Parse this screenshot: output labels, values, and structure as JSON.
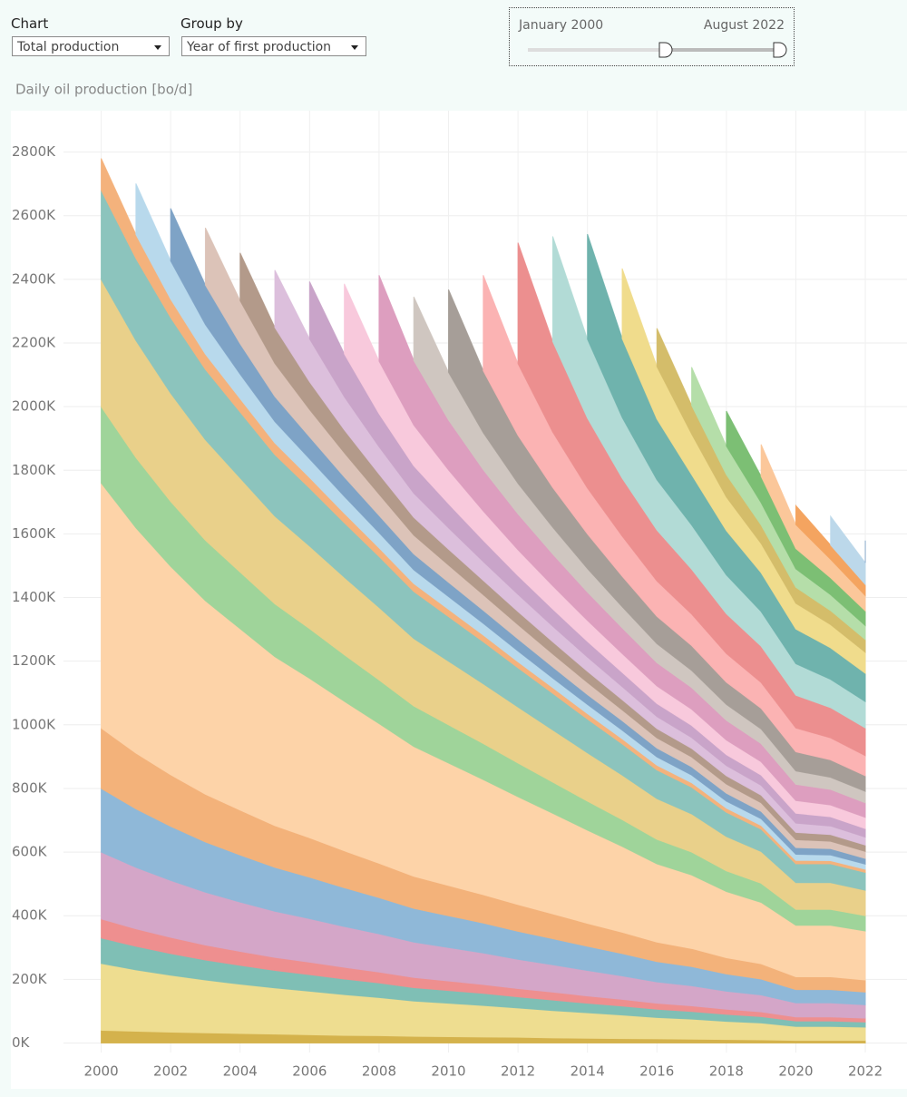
{
  "controls": {
    "chart": {
      "label": "Chart",
      "value": "Total production"
    },
    "group_by": {
      "label": "Group by",
      "value": "Year of first production"
    },
    "slider": {
      "start": "January 2000",
      "end": "August 2022"
    }
  },
  "chart_data": {
    "type": "stacked_area",
    "y_label": "Daily oil production [bo/d]",
    "x": [
      2000,
      2001,
      2002,
      2003,
      2004,
      2005,
      2006,
      2007,
      2008,
      2009,
      2010,
      2011,
      2012,
      2013,
      2014,
      2015,
      2016,
      2017,
      2018,
      2019,
      2020,
      2021,
      2022
    ],
    "xlim": [
      1997.4,
      2023.2
    ],
    "xticks": [
      2000,
      2002,
      2004,
      2006,
      2008,
      2010,
      2012,
      2014,
      2016,
      2018,
      2020,
      2022
    ],
    "ylim": [
      -30,
      2930
    ],
    "yticks": [
      {
        "value": 0,
        "label": "0K"
      },
      {
        "value": 200,
        "label": "200K"
      },
      {
        "value": 400,
        "label": "400K"
      },
      {
        "value": 600,
        "label": "600K"
      },
      {
        "value": 800,
        "label": "800K"
      },
      {
        "value": 1000,
        "label": "1000K"
      },
      {
        "value": 1200,
        "label": "1200K"
      },
      {
        "value": 1400,
        "label": "1400K"
      },
      {
        "value": 1600,
        "label": "1600K"
      },
      {
        "value": 1800,
        "label": "1800K"
      },
      {
        "value": 2000,
        "label": "2000K"
      },
      {
        "value": 2200,
        "label": "2200K"
      },
      {
        "value": 2400,
        "label": "2400K"
      },
      {
        "value": 2600,
        "label": "2600K"
      },
      {
        "value": 2800,
        "label": "2800K"
      }
    ],
    "grid": true,
    "series": [
      {
        "color": "#d4b24c",
        "values": [
          40,
          37,
          34,
          32,
          30,
          28,
          26,
          24,
          23,
          21,
          20,
          19,
          18,
          16,
          15,
          14,
          13,
          12,
          11,
          10,
          8,
          8,
          8
        ]
      },
      {
        "color": "#eedd90",
        "values": [
          210,
          193,
          179,
          166,
          155,
          145,
          137,
          128,
          120,
          111,
          105,
          99,
          92,
          86,
          80,
          74,
          67,
          63,
          57,
          53,
          44,
          44,
          42
        ]
      },
      {
        "color": "#7fbfb5",
        "values": [
          80,
          74,
          68,
          63,
          59,
          55,
          52,
          49,
          46,
          42,
          40,
          38,
          35,
          33,
          30,
          28,
          26,
          24,
          22,
          20,
          17,
          17,
          16
        ]
      },
      {
        "color": "#ee8f8f",
        "values": [
          60,
          55,
          51,
          47,
          44,
          41,
          39,
          37,
          34,
          32,
          30,
          28,
          26,
          25,
          23,
          21,
          19,
          18,
          16,
          15,
          13,
          13,
          12
        ]
      },
      {
        "color": "#d4a6c8",
        "values": [
          210,
          193,
          179,
          166,
          155,
          145,
          137,
          128,
          120,
          111,
          105,
          99,
          92,
          86,
          80,
          74,
          67,
          63,
          57,
          53,
          44,
          44,
          42
        ]
      },
      {
        "color": "#8fb8d8",
        "values": [
          200,
          184,
          170,
          158,
          148,
          138,
          130,
          122,
          114,
          106,
          100,
          94,
          88,
          82,
          76,
          70,
          64,
          60,
          54,
          50,
          42,
          42,
          40
        ]
      },
      {
        "color": "#f3b27a",
        "values": [
          190,
          175,
          162,
          150,
          141,
          131,
          124,
          116,
          108,
          101,
          95,
          89,
          84,
          78,
          72,
          67,
          61,
          57,
          51,
          48,
          40,
          40,
          38
        ]
      },
      {
        "color": "#fdd3a8",
        "values": [
          770,
          708,
          655,
          608,
          570,
          531,
          501,
          470,
          439,
          408,
          385,
          362,
          339,
          316,
          293,
          270,
          246,
          231,
          208,
          193,
          162,
          162,
          154
        ]
      },
      {
        "color": "#9fd49a",
        "values": [
          240,
          221,
          204,
          190,
          178,
          166,
          156,
          146,
          137,
          127,
          120,
          113,
          106,
          98,
          91,
          84,
          77,
          72,
          65,
          60,
          50,
          50,
          48
        ]
      },
      {
        "color": "#e9d08a",
        "values": [
          400,
          368,
          340,
          316,
          296,
          276,
          260,
          244,
          228,
          212,
          200,
          188,
          176,
          164,
          152,
          140,
          128,
          120,
          108,
          100,
          84,
          84,
          80
        ]
      },
      {
        "color": "#8cc4bd",
        "values": [
          280,
          258,
          238,
          221,
          207,
          193,
          182,
          171,
          160,
          148,
          140,
          132,
          123,
          115,
          106,
          98,
          90,
          84,
          76,
          70,
          59,
          59,
          56
        ]
      },
      {
        "color": "#f4b27c",
        "values": [
          100,
          75,
          58,
          48,
          42,
          37,
          33,
          30,
          27,
          25,
          23,
          21,
          19,
          18,
          17,
          16,
          15,
          14,
          13,
          12,
          11,
          10,
          10
        ]
      },
      {
        "color": "#b8d9ec",
        "values": [
          null,
          160,
          120,
          93,
          77,
          67,
          59,
          53,
          48,
          43,
          40,
          37,
          34,
          30,
          29,
          27,
          26,
          24,
          22,
          21,
          19,
          18,
          16
        ]
      },
      {
        "color": "#7ea3c6",
        "values": [
          null,
          null,
          165,
          124,
          96,
          79,
          69,
          61,
          54,
          50,
          45,
          41,
          38,
          35,
          31,
          30,
          28,
          26,
          25,
          23,
          21,
          20,
          18
        ]
      },
      {
        "color": "#dcc3b8",
        "values": [
          null,
          null,
          null,
          180,
          135,
          104,
          86,
          76,
          67,
          59,
          54,
          49,
          45,
          41,
          38,
          34,
          32,
          31,
          29,
          27,
          25,
          23,
          22
        ]
      },
      {
        "color": "#b39a8a",
        "values": [
          null,
          null,
          null,
          null,
          150,
          113,
          87,
          72,
          63,
          56,
          50,
          45,
          41,
          38,
          35,
          32,
          29,
          27,
          26,
          24,
          23,
          21,
          20
        ]
      },
      {
        "color": "#dcbfdc",
        "values": [
          null,
          null,
          null,
          null,
          null,
          180,
          135,
          104,
          86,
          76,
          67,
          59,
          54,
          49,
          45,
          41,
          38,
          34,
          32,
          31,
          29,
          27,
          25
        ]
      },
      {
        "color": "#c9a4c9",
        "values": [
          null,
          null,
          null,
          null,
          null,
          null,
          180,
          135,
          104,
          86,
          76,
          67,
          59,
          54,
          49,
          45,
          41,
          38,
          34,
          32,
          31,
          29,
          27
        ]
      },
      {
        "color": "#f8c9dc",
        "values": [
          null,
          null,
          null,
          null,
          null,
          null,
          null,
          220,
          165,
          128,
          106,
          92,
          81,
          73,
          66,
          59,
          55,
          51,
          46,
          42,
          40,
          37,
          35
        ]
      },
      {
        "color": "#dd9ebf",
        "values": [
          null,
          null,
          null,
          null,
          null,
          null,
          null,
          null,
          270,
          203,
          157,
          130,
          113,
          100,
          89,
          81,
          73,
          68,
          62,
          57,
          51,
          49,
          46
        ]
      },
      {
        "color": "#cfc6c0",
        "values": [
          null,
          null,
          null,
          null,
          null,
          null,
          null,
          null,
          null,
          200,
          150,
          116,
          96,
          84,
          74,
          66,
          60,
          54,
          50,
          46,
          42,
          38,
          36
        ]
      },
      {
        "color": "#a69e98",
        "values": [
          null,
          null,
          null,
          null,
          null,
          null,
          null,
          null,
          null,
          null,
          260,
          195,
          151,
          125,
          109,
          96,
          86,
          78,
          70,
          65,
          60,
          55,
          49
        ]
      },
      {
        "color": "#fbb3b3",
        "values": [
          null,
          null,
          null,
          null,
          null,
          null,
          null,
          null,
          null,
          null,
          null,
          300,
          225,
          174,
          144,
          126,
          111,
          99,
          90,
          81,
          75,
          69,
          63
        ]
      },
      {
        "color": "#ec8f8f",
        "values": [
          null,
          null,
          null,
          null,
          null,
          null,
          null,
          null,
          null,
          null,
          null,
          null,
          380,
          285,
          220,
          182,
          160,
          141,
          125,
          114,
          103,
          95,
          87
        ]
      },
      {
        "color": "#b2dbd6",
        "values": [
          null,
          null,
          null,
          null,
          null,
          null,
          null,
          null,
          null,
          null,
          null,
          null,
          null,
          330,
          248,
          191,
          158,
          139,
          122,
          109,
          99,
          89,
          83
        ]
      },
      {
        "color": "#6fb3ad",
        "values": [
          null,
          null,
          null,
          null,
          null,
          null,
          null,
          null,
          null,
          null,
          null,
          null,
          null,
          null,
          330,
          248,
          191,
          158,
          139,
          122,
          109,
          99,
          89
        ]
      },
      {
        "color": "#f0dc8c",
        "values": [
          null,
          null,
          null,
          null,
          null,
          null,
          null,
          null,
          null,
          null,
          null,
          null,
          null,
          null,
          null,
          220,
          165,
          128,
          106,
          92,
          81,
          73,
          66
        ]
      },
      {
        "color": "#d4bd6a",
        "values": [
          null,
          null,
          null,
          null,
          null,
          null,
          null,
          null,
          null,
          null,
          null,
          null,
          null,
          null,
          null,
          null,
          120,
          90,
          70,
          58,
          50,
          44,
          40
        ]
      },
      {
        "color": "#b5dea9",
        "values": [
          null,
          null,
          null,
          null,
          null,
          null,
          null,
          null,
          null,
          null,
          null,
          null,
          null,
          null,
          null,
          null,
          null,
          120,
          90,
          70,
          58,
          50,
          44
        ]
      },
      {
        "color": "#7cbf74",
        "values": [
          null,
          null,
          null,
          null,
          null,
          null,
          null,
          null,
          null,
          null,
          null,
          null,
          null,
          null,
          null,
          null,
          null,
          null,
          110,
          83,
          64,
          53,
          46
        ]
      },
      {
        "color": "#fbc79a",
        "values": [
          null,
          null,
          null,
          null,
          null,
          null,
          null,
          null,
          null,
          null,
          null,
          null,
          null,
          null,
          null,
          null,
          null,
          null,
          null,
          100,
          75,
          58,
          48
        ]
      },
      {
        "color": "#f4a460",
        "values": [
          null,
          null,
          null,
          null,
          null,
          null,
          null,
          null,
          null,
          null,
          null,
          null,
          null,
          null,
          null,
          null,
          null,
          null,
          null,
          null,
          60,
          45,
          35
        ]
      },
      {
        "color": "#bcd8ea",
        "values": [
          null,
          null,
          null,
          null,
          null,
          null,
          null,
          null,
          null,
          null,
          null,
          null,
          null,
          null,
          null,
          null,
          null,
          null,
          null,
          null,
          null,
          90,
          68
        ]
      },
      {
        "color": "#7ea3c6",
        "values": [
          null,
          null,
          null,
          null,
          null,
          null,
          null,
          null,
          null,
          null,
          null,
          null,
          null,
          null,
          null,
          null,
          null,
          null,
          null,
          null,
          null,
          null,
          70
        ]
      }
    ]
  }
}
